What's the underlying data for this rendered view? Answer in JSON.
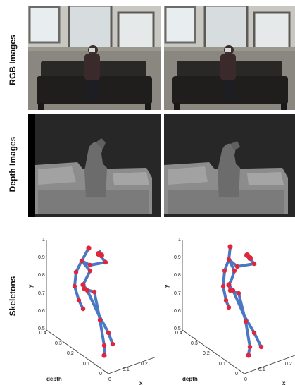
{
  "rows": {
    "rgb_label": "RGB Images",
    "depth_label": "Depth Images",
    "skeleton_label": "Skeletons"
  },
  "skeleton_axes": {
    "y_label": "y",
    "depth_label": "depth",
    "x_label": "x",
    "y_ticks": [
      "0.5",
      "0.6",
      "0.7",
      "0.8",
      "0.9",
      "1"
    ],
    "depth_ticks": [
      "0",
      "0.1",
      "0.2",
      "0.3",
      "0.4"
    ],
    "x_ticks": [
      "0",
      "0.1",
      "0.2"
    ]
  },
  "colors": {
    "bone": "#4a78c4",
    "joint": "#e0263a",
    "axis": "#333333"
  }
}
